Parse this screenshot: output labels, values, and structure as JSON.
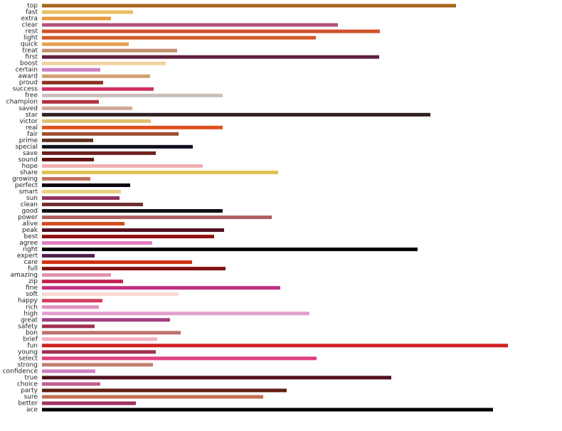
{
  "chart_data": {
    "type": "barh",
    "categories": [
      "top",
      "fast",
      "extra",
      "clear",
      "rest",
      "light",
      "quick",
      "treat",
      "first",
      "boost",
      "certain",
      "award",
      "proud",
      "success",
      "free",
      "champion",
      "saved",
      "star",
      "victor",
      "real",
      "fair",
      "prime",
      "special",
      "save",
      "sound",
      "hope",
      "share",
      "growing",
      "perfect",
      "smart",
      "sun",
      "clean",
      "good",
      "power",
      "alive",
      "peak",
      "best",
      "agree",
      "right",
      "expert",
      "care",
      "full",
      "amazing",
      "zip",
      "fine",
      "soft",
      "happy",
      "rich",
      "high",
      "great",
      "safety",
      "bon",
      "brief",
      "fun",
      "young",
      "select",
      "strong",
      "confidence",
      "true",
      "choice",
      "party",
      "sure",
      "better",
      "ace"
    ],
    "values": [
      582,
      128,
      97,
      416,
      475,
      385,
      122,
      190,
      474,
      174,
      82,
      152,
      86,
      157,
      254,
      80,
      127,
      546,
      153,
      254,
      192,
      72,
      212,
      160,
      73,
      226,
      332,
      68,
      124,
      111,
      109,
      142,
      254,
      323,
      116,
      256,
      242,
      155,
      528,
      74,
      211,
      258,
      97,
      114,
      335,
      192,
      85,
      80,
      376,
      180,
      74,
      195,
      162,
      655,
      160,
      386,
      156,
      75,
      491,
      82,
      344,
      311,
      132,
      634
    ],
    "colors": [
      "#a8641e",
      "#e8c060",
      "#e89a40",
      "#b45080",
      "#d0502a",
      "#d05a28",
      "#e8a050",
      "#c09070",
      "#602040",
      "#f0d0a0",
      "#d080c0",
      "#d0a070",
      "#8a3020",
      "#d03060",
      "#c8c0b8",
      "#b03040",
      "#d0a898",
      "#302020",
      "#e0c070",
      "#e05020",
      "#a05030",
      "#603020",
      "#101020",
      "#702020",
      "#601010",
      "#f0b0b0",
      "#e0c050",
      "#c07060",
      "#100010",
      "#e8d080",
      "#903060",
      "#703030",
      "#101010",
      "#b06060",
      "#d05020",
      "#501020",
      "#901010",
      "#e080c0",
      "#000000",
      "#502050",
      "#d03010",
      "#801010",
      "#e090b0",
      "#c02050",
      "#c03080",
      "#f8d8d0",
      "#d04060",
      "#e090c0",
      "#e0a0d0",
      "#a04080",
      "#a03050",
      "#c07070",
      "#f0b0c0",
      "#d02020",
      "#a03050",
      "#e04080",
      "#c08070",
      "#d080c0",
      "#501020",
      "#c06090",
      "#602010",
      "#c07050",
      "#a03060",
      "#000000"
    ],
    "xlim": [
      0,
      700
    ]
  }
}
